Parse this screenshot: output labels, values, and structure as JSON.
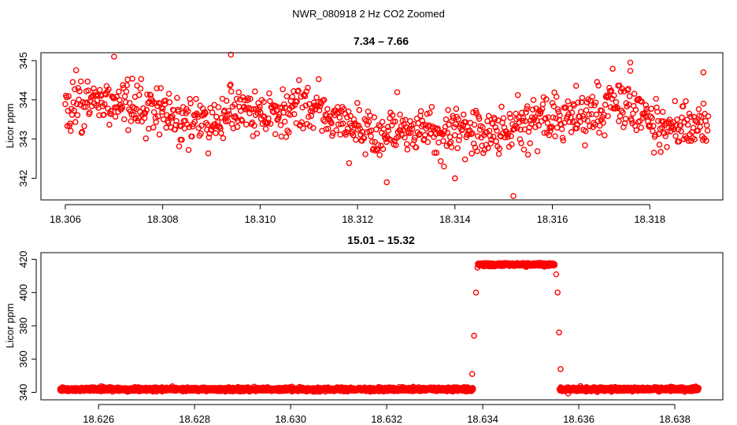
{
  "figure_title": "NWR_080918  2 Hz CO2 Zoomed",
  "colors": {
    "points": "#ff0000",
    "frame": "#000000",
    "background": "#ffffff"
  },
  "chart_data": [
    {
      "type": "scatter",
      "title": "7.34 – 7.66",
      "xlabel": "",
      "ylabel": "Licor ppm",
      "xlim": [
        18.3055,
        18.3195
      ],
      "ylim": [
        341.45,
        345.2
      ],
      "x_ticks": [
        18.306,
        18.308,
        18.31,
        18.312,
        18.314,
        18.316,
        18.318
      ],
      "x_tick_labels": [
        "18.306",
        "18.308",
        "18.310",
        "18.312",
        "18.314",
        "18.316",
        "18.318"
      ],
      "y_ticks": [
        342,
        343,
        344,
        345
      ],
      "y_tick_labels": [
        "342",
        "343",
        "344",
        "345"
      ],
      "grid": false,
      "legend": "none",
      "marker": "open-circle",
      "series": [
        {
          "x_start": 18.306,
          "x_end": 18.3192,
          "n_points": 950,
          "level_profile": [
            [
              18.306,
              343.9
            ],
            [
              18.307,
              343.95
            ],
            [
              18.3075,
              343.8
            ],
            [
              18.308,
              343.7
            ],
            [
              18.309,
              343.3
            ],
            [
              18.3095,
              343.9
            ],
            [
              18.31,
              343.6
            ],
            [
              18.311,
              343.8
            ],
            [
              18.312,
              343.2
            ],
            [
              18.313,
              343.1
            ],
            [
              18.314,
              343.2
            ],
            [
              18.315,
              343.15
            ],
            [
              18.316,
              343.5
            ],
            [
              18.317,
              343.8
            ],
            [
              18.3175,
              344.1
            ],
            [
              18.318,
              343.4
            ],
            [
              18.3192,
              343.3
            ]
          ],
          "noise_sd": 0.38,
          "y_min": 341.55,
          "y_max": 345.15,
          "highlighted_points": [
            {
              "x": 18.3152,
              "y": 341.55
            },
            {
              "x": 18.3094,
              "y": 345.15
            },
            {
              "x": 18.307,
              "y": 345.1
            },
            {
              "x": 18.3176,
              "y": 344.95
            },
            {
              "x": 18.3191,
              "y": 344.7
            },
            {
              "x": 18.3126,
              "y": 341.9
            },
            {
              "x": 18.314,
              "y": 342.0
            }
          ]
        }
      ]
    },
    {
      "type": "scatter",
      "title": "15.01 – 15.32",
      "xlabel": "",
      "ylabel": "Licor ppm",
      "xlim": [
        18.6248,
        18.639
      ],
      "ylim": [
        335.5,
        424
      ],
      "x_ticks": [
        18.626,
        18.628,
        18.63,
        18.632,
        18.634,
        18.636,
        18.638
      ],
      "x_tick_labels": [
        "18.626",
        "18.628",
        "18.630",
        "18.632",
        "18.634",
        "18.636",
        "18.638"
      ],
      "y_ticks": [
        340,
        360,
        380,
        400,
        420
      ],
      "y_tick_labels": [
        "340",
        "360",
        "380",
        "400",
        "420"
      ],
      "grid": false,
      "legend": "none",
      "marker": "open-circle",
      "series": [
        {
          "segments": [
            {
              "x_start": 18.6252,
              "x_end": 18.6338,
              "level": 341.8,
              "noise_sd": 0.55
            },
            {
              "x_start": 18.6339,
              "x_end": 18.6355,
              "level": 416.8,
              "noise_sd": 0.45
            },
            {
              "x_start": 18.6356,
              "x_end": 18.6385,
              "level": 341.9,
              "noise_sd": 0.55
            }
          ],
          "transition_points": [
            {
              "x": 18.63378,
              "y": 351
            },
            {
              "x": 18.63382,
              "y": 374
            },
            {
              "x": 18.63386,
              "y": 400
            },
            {
              "x": 18.63389,
              "y": 415
            },
            {
              "x": 18.63553,
              "y": 411
            },
            {
              "x": 18.63556,
              "y": 400
            },
            {
              "x": 18.63559,
              "y": 376
            },
            {
              "x": 18.63562,
              "y": 354
            }
          ]
        }
      ]
    }
  ]
}
